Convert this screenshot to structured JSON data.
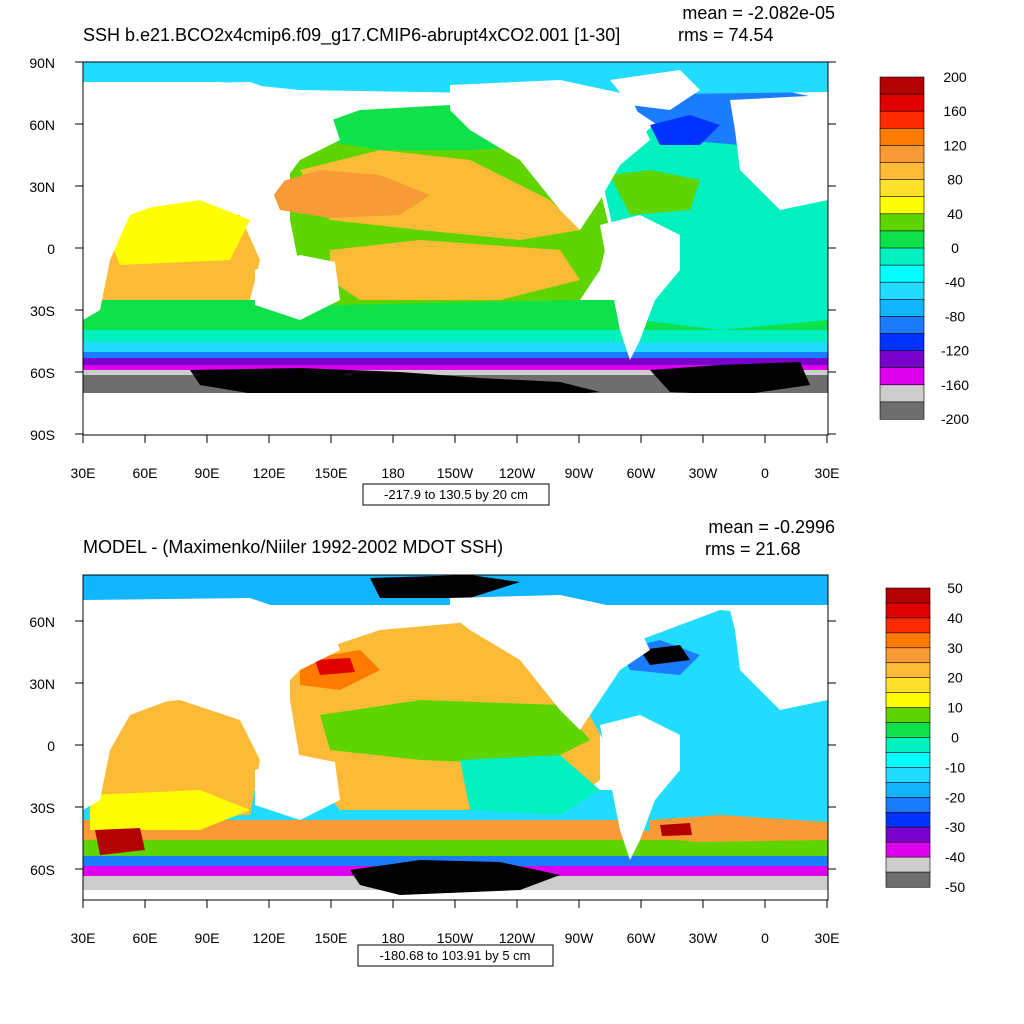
{
  "panels": [
    {
      "title": "SSH b.e21.BCO2x4cmip6.f09_g17.CMIP6-abrupt4xCO2.001 [1-30]",
      "stats": {
        "mean": "mean = -2.082e-05",
        "rms": "rms = 74.54"
      },
      "range_label": "-217.9 to 130.5 by 20 cm",
      "lat_ticks": [
        "90N",
        "60N",
        "30N",
        "0",
        "30S",
        "60S",
        "90S"
      ],
      "lon_ticks": [
        "30E",
        "60E",
        "90E",
        "120E",
        "150E",
        "180",
        "150W",
        "120W",
        "90W",
        "60W",
        "30W",
        "0",
        "30E"
      ],
      "colorbar": {
        "labels": [
          "200",
          "160",
          "120",
          "80",
          "40",
          "0",
          "-40",
          "-80",
          "-120",
          "-160",
          "-200"
        ],
        "colors": [
          "#b30000",
          "#e00000",
          "#ff2a00",
          "#ff7b00",
          "#f89a35",
          "#fcbb37",
          "#fee12a",
          "#ffff00",
          "#5fd500",
          "#0fe14a",
          "#00f0c0",
          "#00ffff",
          "#22dcff",
          "#11b6ff",
          "#1c7cff",
          "#0033ff",
          "#7a00cc",
          "#dd00ee",
          "#cdcdcd",
          "#6e6e6e"
        ]
      }
    },
    {
      "title": "MODEL - (Maximenko/Niiler 1992-2002 MDOT SSH)",
      "stats": {
        "mean": "mean = -0.2996",
        "rms": "rms = 21.68"
      },
      "range_label": "-180.68 to 103.91 by 5 cm",
      "lat_ticks": [
        "60N",
        "30N",
        "0",
        "30S",
        "60S"
      ],
      "lon_ticks": [
        "30E",
        "60E",
        "90E",
        "120E",
        "150E",
        "180",
        "150W",
        "120W",
        "90W",
        "60W",
        "30W",
        "0",
        "30E"
      ],
      "colorbar": {
        "labels": [
          "50",
          "40",
          "30",
          "20",
          "10",
          "0",
          "-10",
          "-20",
          "-30",
          "-40",
          "-50"
        ],
        "colors": [
          "#b30000",
          "#e00000",
          "#ff2a00",
          "#ff7b00",
          "#f89a35",
          "#fcbb37",
          "#fee12a",
          "#ffff00",
          "#5fd500",
          "#0fe14a",
          "#00f0c0",
          "#00ffff",
          "#22dcff",
          "#11b6ff",
          "#1c7cff",
          "#0033ff",
          "#7a00cc",
          "#dd00ee",
          "#cdcdcd",
          "#6e6e6e"
        ]
      }
    }
  ]
}
